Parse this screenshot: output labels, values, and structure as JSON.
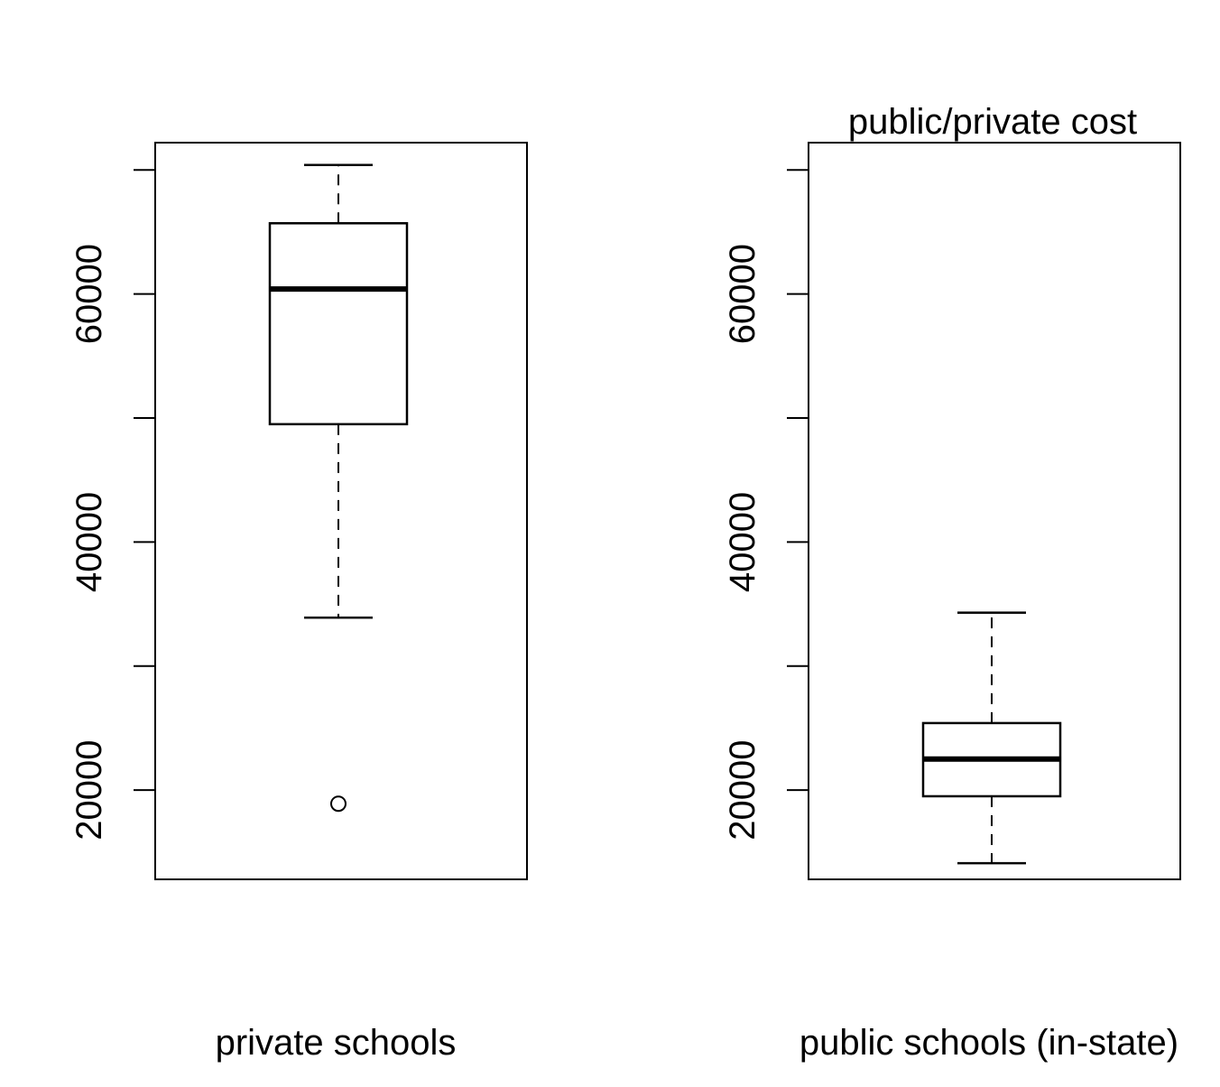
{
  "chart_data": [
    {
      "type": "boxplot",
      "title": "",
      "xlabel": "private schools",
      "ylabel": "",
      "ylim": [
        12800,
        72200
      ],
      "yticks": [
        20000,
        30000,
        40000,
        50000,
        60000,
        70000
      ],
      "ytick_labels": [
        "20000",
        "",
        "40000",
        "",
        "60000",
        ""
      ],
      "box": {
        "whisker_low": 33900,
        "q1": 49500,
        "median": 60400,
        "q3": 65700,
        "whisker_high": 70400,
        "outliers": [
          18900
        ]
      }
    },
    {
      "type": "boxplot",
      "title": "public/private cost",
      "xlabel": "public schools (in-state)",
      "ylabel": "",
      "ylim": [
        12800,
        72200
      ],
      "yticks": [
        20000,
        30000,
        40000,
        50000,
        60000,
        70000
      ],
      "ytick_labels": [
        "20000",
        "",
        "40000",
        "",
        "60000",
        ""
      ],
      "box": {
        "whisker_low": 14100,
        "q1": 19500,
        "median": 22500,
        "q3": 25400,
        "whisker_high": 34300,
        "outliers": []
      }
    }
  ]
}
